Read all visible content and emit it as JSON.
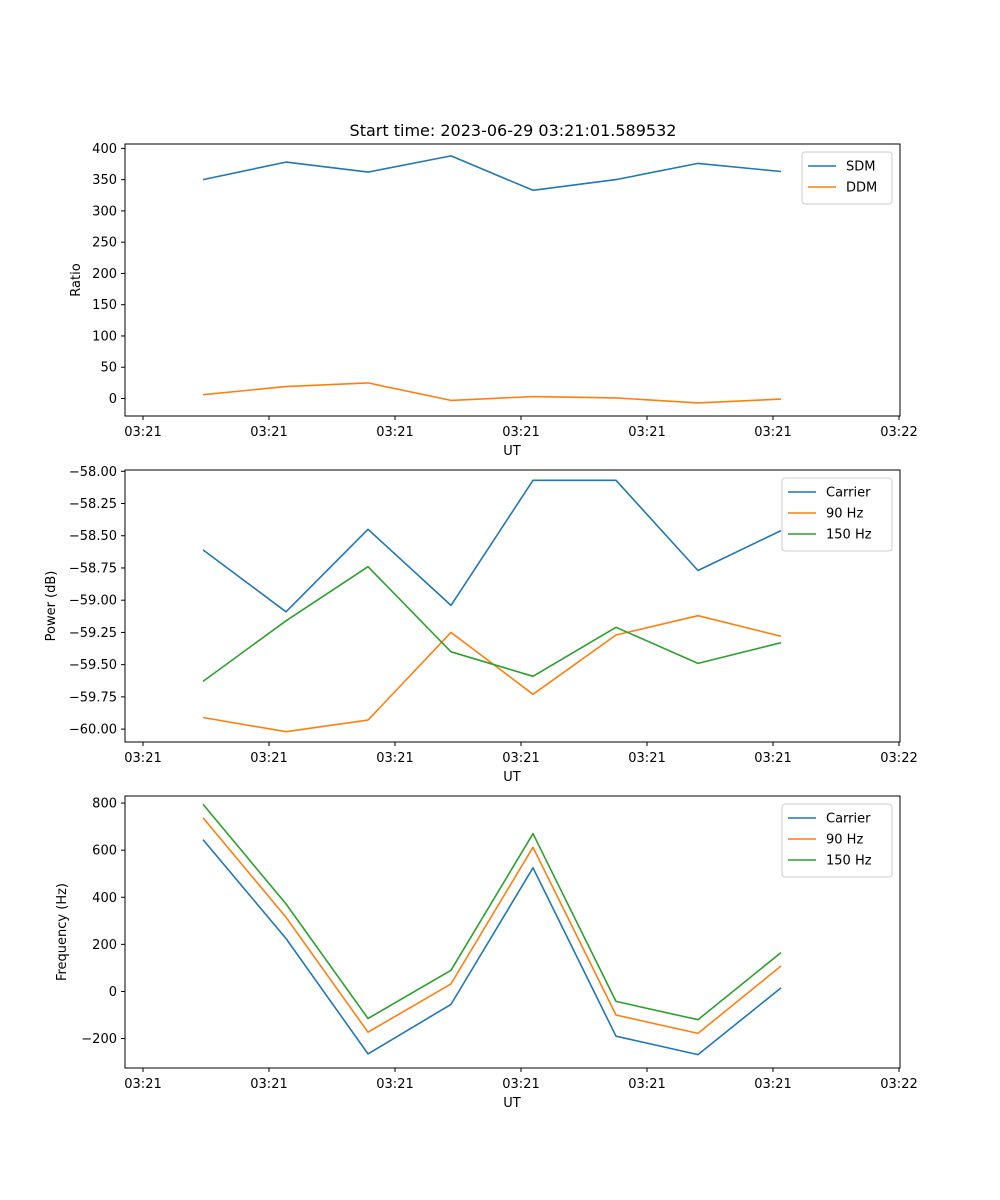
{
  "figure": {
    "title": "Start time: 2023-06-29 03:21:01.589532"
  },
  "chart_data": [
    {
      "type": "line",
      "title": "Start time: 2023-06-29 03:21:01.589532",
      "xlabel": "UT",
      "ylabel": "Ratio",
      "x_tick_labels": [
        "03:21",
        "03:21",
        "03:21",
        "03:21",
        "03:21",
        "03:21",
        "03:21"
      ],
      "x_end_label": "03:22",
      "ylim": [
        -28,
        407
      ],
      "y_ticks": [
        0,
        50,
        100,
        150,
        200,
        250,
        300,
        350,
        400
      ],
      "legend_position": "top-right",
      "grid": false,
      "series": [
        {
          "name": "SDM",
          "color": "#1f77b4",
          "values": [
            350,
            378,
            362,
            388,
            333,
            350,
            376,
            363
          ]
        },
        {
          "name": "DDM",
          "color": "#ff7f0e",
          "values": [
            6,
            19,
            25,
            -3,
            3,
            1,
            -7,
            -1
          ]
        }
      ]
    },
    {
      "type": "line",
      "title": "",
      "xlabel": "UT",
      "ylabel": "Power (dB)",
      "x_tick_labels": [
        "03:21",
        "03:21",
        "03:21",
        "03:21",
        "03:21",
        "03:21",
        "03:21"
      ],
      "x_end_label": "03:22",
      "ylim": [
        -60.1,
        -57.99
      ],
      "y_ticks": [
        -60.0,
        -59.75,
        -59.5,
        -59.25,
        -59.0,
        -58.75,
        -58.5,
        -58.25,
        -58.0
      ],
      "y_tick_labels": [
        "−60.00",
        "−59.75",
        "−59.50",
        "−59.25",
        "−59.00",
        "−58.75",
        "−58.50",
        "−58.25",
        "−58.00"
      ],
      "legend_position": "top-right",
      "grid": false,
      "series": [
        {
          "name": "Carrier",
          "color": "#1f77b4",
          "values": [
            -58.61,
            -59.09,
            -58.45,
            -59.04,
            -58.07,
            -58.07,
            -58.77,
            -58.46
          ]
        },
        {
          "name": "90 Hz",
          "color": "#ff7f0e",
          "values": [
            -59.91,
            -60.02,
            -59.93,
            -59.25,
            -59.73,
            -59.27,
            -59.12,
            -59.28
          ]
        },
        {
          "name": "150 Hz",
          "color": "#2ca02c",
          "values": [
            -59.63,
            -59.16,
            -58.74,
            -59.4,
            -59.59,
            -59.21,
            -59.49,
            -59.33
          ]
        }
      ]
    },
    {
      "type": "line",
      "title": "",
      "xlabel": "UT",
      "ylabel": "Frequency (Hz)",
      "x_tick_labels": [
        "03:21",
        "03:21",
        "03:21",
        "03:21",
        "03:21",
        "03:21",
        "03:21"
      ],
      "x_end_label": "03:22",
      "ylim": [
        -325,
        830
      ],
      "y_ticks": [
        -200,
        0,
        200,
        400,
        600,
        800
      ],
      "y_tick_labels": [
        "−200",
        "0",
        "200",
        "400",
        "600",
        "800"
      ],
      "legend_position": "top-right",
      "grid": false,
      "series": [
        {
          "name": "Carrier",
          "color": "#1f77b4",
          "values": [
            645,
            225,
            -265,
            -55,
            525,
            -190,
            -268,
            15
          ]
        },
        {
          "name": "90 Hz",
          "color": "#ff7f0e",
          "values": [
            738,
            315,
            -173,
            32,
            612,
            -100,
            -178,
            108
          ]
        },
        {
          "name": "150 Hz",
          "color": "#2ca02c",
          "values": [
            795,
            372,
            -115,
            90,
            670,
            -42,
            -120,
            165
          ]
        }
      ]
    }
  ]
}
